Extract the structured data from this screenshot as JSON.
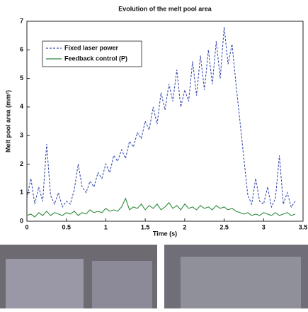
{
  "chart_data": {
    "type": "line",
    "title": "Evolution of the melt pool area",
    "xlabel": "Time (s)",
    "ylabel": "Melt pool area (mm²)",
    "x": [
      0,
      0.05,
      0.1,
      0.15,
      0.2,
      0.25,
      0.3,
      0.35,
      0.4,
      0.45,
      0.5,
      0.55,
      0.6,
      0.65,
      0.7,
      0.75,
      0.8,
      0.85,
      0.9,
      0.95,
      1.0,
      1.05,
      1.1,
      1.15,
      1.2,
      1.25,
      1.3,
      1.35,
      1.4,
      1.45,
      1.5,
      1.55,
      1.6,
      1.65,
      1.7,
      1.75,
      1.8,
      1.85,
      1.9,
      1.95,
      2.0,
      2.05,
      2.1,
      2.15,
      2.2,
      2.25,
      2.3,
      2.35,
      2.4,
      2.45,
      2.5,
      2.55,
      2.6,
      2.65,
      2.7,
      2.75,
      2.8,
      2.85,
      2.9,
      2.95,
      3.0,
      3.05,
      3.1,
      3.15,
      3.2,
      3.25,
      3.3,
      3.35,
      3.4
    ],
    "series": [
      {
        "name": "Fixed laser power",
        "color": "#3a4db0",
        "dashed": true,
        "values": [
          0.8,
          1.5,
          0.6,
          1.2,
          0.7,
          2.7,
          0.9,
          0.6,
          1.0,
          0.5,
          0.7,
          0.6,
          1.1,
          2.0,
          1.2,
          1.0,
          1.4,
          1.2,
          1.7,
          1.5,
          2.0,
          1.7,
          2.3,
          2.1,
          2.5,
          2.2,
          2.8,
          2.6,
          3.1,
          2.9,
          3.5,
          3.2,
          4.0,
          3.4,
          4.5,
          3.9,
          4.8,
          4.2,
          5.3,
          4.0,
          4.6,
          4.2,
          5.6,
          4.4,
          5.8,
          4.6,
          6.0,
          4.8,
          6.3,
          5.0,
          6.8,
          5.5,
          6.2,
          4.8,
          3.5,
          2.2,
          0.9,
          0.6,
          1.5,
          0.7,
          0.6,
          1.2,
          0.5,
          0.8,
          2.3,
          0.6,
          1.0,
          0.5,
          0.7
        ]
      },
      {
        "name": "Feedback control (P)",
        "color": "#2e8b3a",
        "dashed": false,
        "values": [
          0.2,
          0.25,
          0.15,
          0.3,
          0.2,
          0.35,
          0.2,
          0.3,
          0.25,
          0.2,
          0.3,
          0.25,
          0.35,
          0.2,
          0.3,
          0.25,
          0.4,
          0.3,
          0.35,
          0.3,
          0.45,
          0.35,
          0.4,
          0.35,
          0.5,
          0.8,
          0.4,
          0.5,
          0.45,
          0.6,
          0.4,
          0.55,
          0.45,
          0.6,
          0.4,
          0.5,
          0.65,
          0.45,
          0.55,
          0.4,
          0.6,
          0.45,
          0.5,
          0.4,
          0.55,
          0.45,
          0.5,
          0.4,
          0.55,
          0.45,
          0.5,
          0.4,
          0.45,
          0.35,
          0.3,
          0.25,
          0.3,
          0.2,
          0.25,
          0.2,
          0.3,
          0.25,
          0.2,
          0.3,
          0.2,
          0.25,
          0.3,
          0.2,
          0.25
        ]
      }
    ],
    "xlim": [
      0,
      3.5
    ],
    "xticks": [
      0,
      0.5,
      1,
      1.5,
      2,
      2.5,
      3,
      3.5
    ],
    "ylim": [
      0,
      7
    ],
    "yticks": [
      0,
      1,
      2,
      3,
      4,
      5,
      6,
      7
    ],
    "legend": "upper left"
  }
}
